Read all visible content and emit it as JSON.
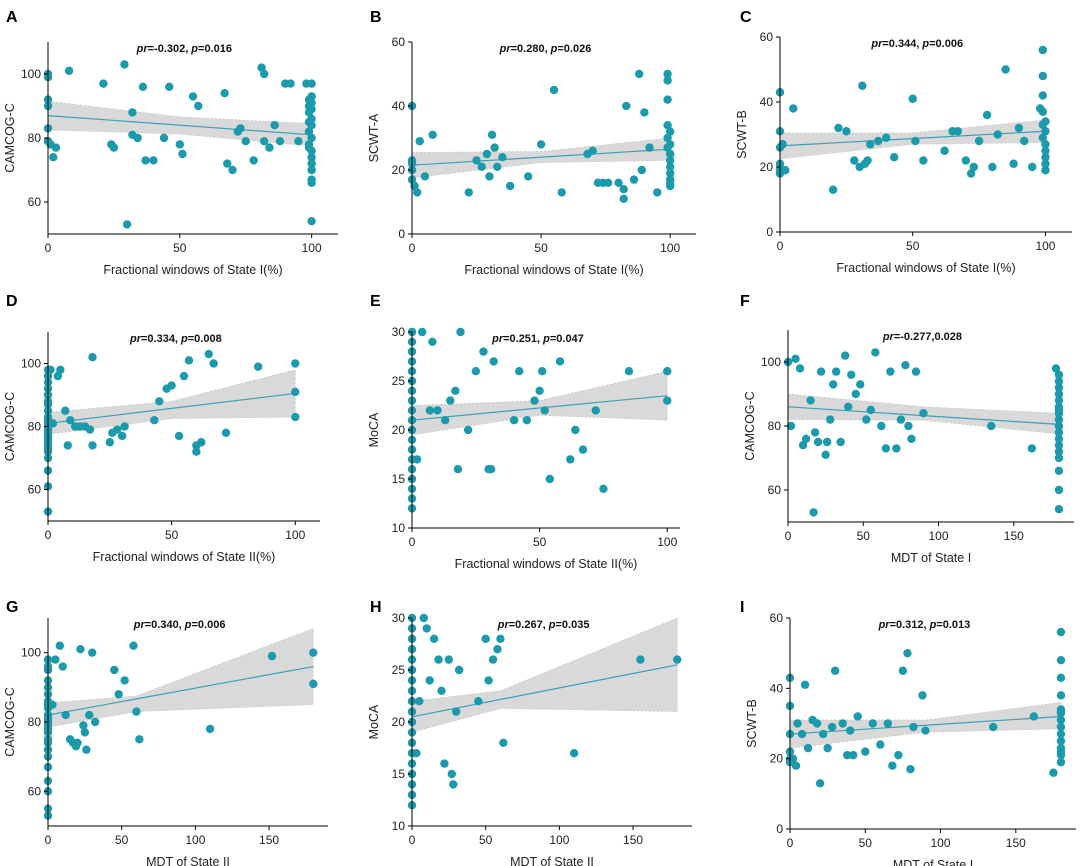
{
  "chart_data": [
    {
      "panel": "A",
      "type": "scatter",
      "xlabel": "Fractional windows of State I(%)",
      "ylabel": "CAMCOG-C",
      "stat_pr": "-0.302",
      "stat_p": "0.016",
      "xlim": [
        0,
        110
      ],
      "ylim": [
        50,
        110
      ],
      "xticks": [
        0,
        50,
        100
      ],
      "yticks": [
        60,
        80,
        100
      ],
      "fit": [
        [
          0,
          87
        ],
        [
          100,
          81
        ]
      ],
      "ci_low": [
        [
          0,
          82.5
        ],
        [
          50,
          81.2
        ],
        [
          100,
          77.5
        ]
      ],
      "ci_high": [
        [
          0,
          91.5
        ],
        [
          50,
          86.6
        ],
        [
          100,
          84.5
        ]
      ],
      "x": [
        0,
        0,
        0,
        0,
        0,
        0,
        1,
        2,
        3,
        8,
        21,
        24,
        25,
        29,
        30,
        32,
        32,
        34,
        36,
        37,
        40,
        44,
        46,
        50,
        51,
        55,
        57,
        67,
        68,
        70,
        72,
        73,
        75,
        78,
        81,
        82,
        82,
        84,
        86,
        88,
        90,
        92,
        95,
        98,
        99,
        99,
        99,
        99,
        99,
        99,
        99,
        100,
        100,
        100,
        100,
        100,
        100,
        100,
        100,
        100,
        100,
        100,
        100,
        100,
        100
      ],
      "y": [
        100,
        99,
        92,
        90,
        83,
        79,
        78,
        74,
        77,
        101,
        97,
        78,
        77,
        103,
        53,
        81,
        88,
        80,
        96,
        73,
        73,
        80,
        96,
        78,
        75,
        93,
        90,
        94,
        72,
        70,
        82,
        83,
        79,
        73,
        102,
        100,
        79,
        77,
        84,
        79,
        97,
        97,
        79,
        97,
        92,
        90,
        88,
        85,
        82,
        78,
        77,
        76,
        74,
        70,
        67,
        54,
        97,
        93,
        91,
        89,
        86,
        84,
        80,
        72,
        66
      ]
    },
    {
      "panel": "B",
      "type": "scatter",
      "xlabel": "Fractional windows of State I(%)",
      "ylabel": "SCWT-A",
      "stat_pr": "0.280",
      "stat_p": "0.026",
      "xlim": [
        0,
        110
      ],
      "ylim": [
        0,
        60
      ],
      "xticks": [
        0,
        50,
        100
      ],
      "yticks": [
        0,
        20,
        40,
        60
      ],
      "fit": [
        [
          0,
          21.5
        ],
        [
          100,
          26.5
        ]
      ],
      "ci_low": [
        [
          0,
          17.5
        ],
        [
          50,
          22.3
        ],
        [
          100,
          23
        ]
      ],
      "ci_high": [
        [
          0,
          25.5
        ],
        [
          50,
          25.8
        ],
        [
          100,
          30
        ]
      ],
      "x": [
        0,
        0,
        0,
        0,
        0,
        1,
        2,
        3,
        5,
        8,
        22,
        25,
        27,
        29,
        30,
        31,
        32,
        33,
        35,
        38,
        45,
        50,
        55,
        58,
        68,
        70,
        72,
        74,
        76,
        80,
        82,
        82,
        83,
        86,
        88,
        89,
        90,
        92,
        95,
        99,
        99,
        99,
        99,
        99,
        99,
        100,
        100,
        100,
        100,
        100,
        100,
        100,
        100,
        100
      ],
      "y": [
        40,
        23,
        22,
        20,
        17,
        15,
        13,
        29,
        18,
        31,
        13,
        23,
        21,
        25,
        18,
        31,
        27,
        21,
        24,
        15,
        18,
        28,
        45,
        13,
        25,
        26,
        16,
        16,
        16,
        16,
        11,
        14,
        40,
        17,
        50,
        20,
        38,
        27,
        13,
        50,
        48,
        42,
        34,
        30,
        27,
        25,
        23,
        21,
        19,
        17,
        16,
        15,
        28,
        32
      ]
    },
    {
      "panel": "C",
      "type": "scatter",
      "xlabel": "Fractional windows of State I(%)",
      "ylabel": "SCWT-B",
      "stat_pr": "0.344",
      "stat_p": "0.006",
      "xlim": [
        0,
        110
      ],
      "ylim": [
        0,
        60
      ],
      "xticks": [
        0,
        50,
        100
      ],
      "yticks": [
        0,
        20,
        40,
        60
      ],
      "fit": [
        [
          0,
          26.5
        ],
        [
          100,
          31
        ]
      ],
      "ci_low": [
        [
          0,
          22.5
        ],
        [
          50,
          27
        ],
        [
          100,
          27.5
        ]
      ],
      "ci_high": [
        [
          0,
          30.5
        ],
        [
          50,
          30.5
        ],
        [
          100,
          34.5
        ]
      ],
      "x": [
        0,
        0,
        0,
        0,
        0,
        0,
        1,
        2,
        5,
        20,
        22,
        25,
        28,
        30,
        31,
        32,
        33,
        34,
        37,
        40,
        43,
        50,
        51,
        54,
        62,
        65,
        67,
        70,
        72,
        73,
        75,
        78,
        80,
        82,
        85,
        88,
        90,
        92,
        95,
        98,
        99,
        99,
        99,
        99,
        99,
        99,
        100,
        100,
        100,
        100,
        100,
        100,
        100
      ],
      "y": [
        43,
        31,
        26,
        21,
        19,
        18,
        27,
        19,
        38,
        13,
        32,
        31,
        22,
        20,
        45,
        21,
        22,
        27,
        28,
        29,
        23,
        41,
        28,
        22,
        25,
        31,
        31,
        22,
        18,
        20,
        28,
        36,
        20,
        30,
        50,
        21,
        32,
        28,
        20,
        38,
        56,
        48,
        42,
        37,
        33,
        29,
        27,
        25,
        23,
        21,
        19,
        31,
        34
      ]
    },
    {
      "panel": "D",
      "type": "scatter",
      "xlabel": "Fractional windows of State II(%)",
      "ylabel": "CAMCOG-C",
      "stat_pr": "0.334",
      "stat_p": "0.008",
      "xlim": [
        0,
        110
      ],
      "ylim": [
        50,
        110
      ],
      "xticks": [
        0,
        50,
        100
      ],
      "yticks": [
        60,
        80,
        100
      ],
      "fit": [
        [
          0,
          81
        ],
        [
          100,
          90.5
        ]
      ],
      "ci_low": [
        [
          0,
          77.5
        ],
        [
          50,
          82.5
        ],
        [
          100,
          83
        ]
      ],
      "ci_high": [
        [
          0,
          84.5
        ],
        [
          50,
          88
        ],
        [
          100,
          98
        ]
      ],
      "x": [
        0,
        0,
        0,
        0,
        0,
        0,
        0,
        0,
        0,
        0,
        0,
        0,
        0,
        0,
        0,
        0,
        0,
        0,
        0,
        0,
        0,
        0,
        0,
        0,
        1,
        2,
        4,
        5,
        7,
        8,
        9,
        11,
        13,
        15,
        17,
        18,
        18,
        25,
        26,
        28,
        30,
        31,
        43,
        45,
        48,
        50,
        53,
        55,
        57,
        60,
        60,
        62,
        65,
        67,
        72,
        85,
        100,
        100,
        100
      ],
      "y": [
        98,
        96,
        94,
        92,
        90,
        88,
        87,
        85,
        83,
        82,
        81,
        80,
        79,
        78,
        77,
        76,
        75,
        74,
        73,
        72,
        70,
        66,
        61,
        53,
        98,
        81,
        96,
        98,
        85,
        74,
        82,
        80,
        80,
        80,
        79,
        74,
        102,
        75,
        78,
        79,
        77,
        80,
        82,
        88,
        92,
        93,
        77,
        96,
        101,
        72,
        74,
        75,
        103,
        100,
        78,
        99,
        100,
        91,
        83
      ]
    },
    {
      "panel": "E",
      "type": "scatter",
      "xlabel": "Fractional windows of State II(%)",
      "ylabel": "MoCA",
      "stat_pr": "0.251",
      "stat_p": "0.047",
      "xlim": [
        0,
        105
      ],
      "ylim": [
        10,
        30
      ],
      "xticks": [
        0,
        50,
        100
      ],
      "yticks": [
        10,
        15,
        20,
        25,
        30
      ],
      "fit": [
        [
          0,
          21
        ],
        [
          100,
          23.5
        ]
      ],
      "ci_low": [
        [
          0,
          19.5
        ],
        [
          50,
          21.5
        ],
        [
          100,
          21
        ]
      ],
      "ci_high": [
        [
          0,
          22.5
        ],
        [
          50,
          23
        ],
        [
          100,
          26
        ]
      ],
      "x": [
        0,
        0,
        0,
        0,
        0,
        0,
        0,
        0,
        0,
        0,
        0,
        0,
        0,
        0,
        0,
        0,
        0,
        0,
        0,
        2,
        4,
        7,
        8,
        10,
        13,
        15,
        17,
        18,
        19,
        22,
        25,
        28,
        30,
        31,
        32,
        40,
        42,
        45,
        48,
        50,
        51,
        52,
        54,
        58,
        62,
        64,
        67,
        72,
        75,
        85,
        100,
        100
      ],
      "y": [
        30,
        29,
        28,
        27,
        26,
        25,
        24,
        23,
        22,
        21,
        20,
        19,
        18,
        17,
        16,
        15,
        14,
        13,
        12,
        17,
        30,
        22,
        29,
        22,
        21,
        23,
        24,
        16,
        30,
        20,
        26,
        28,
        16,
        16,
        27,
        21,
        26,
        21,
        23,
        24,
        26,
        22,
        15,
        27,
        17,
        20,
        18,
        22,
        14,
        26,
        23,
        26
      ]
    },
    {
      "panel": "F",
      "type": "scatter",
      "xlabel": "MDT of State I",
      "ylabel": "CAMCOG-C",
      "stat_pr": "-0.277",
      "stat_p": "",
      "stat_text": "0.028",
      "xlim": [
        0,
        190
      ],
      "ylim": [
        50,
        110
      ],
      "xticks": [
        0,
        50,
        100,
        150
      ],
      "yticks": [
        60,
        80,
        100
      ],
      "fit": [
        [
          0,
          86
        ],
        [
          180,
          80.5
        ]
      ],
      "ci_low": [
        [
          0,
          82
        ],
        [
          90,
          81.8
        ],
        [
          180,
          77.5
        ]
      ],
      "ci_high": [
        [
          0,
          90
        ],
        [
          90,
          86
        ],
        [
          180,
          84
        ]
      ],
      "x": [
        0,
        2,
        5,
        8,
        10,
        12,
        15,
        17,
        18,
        20,
        22,
        25,
        26,
        28,
        30,
        32,
        35,
        38,
        40,
        42,
        45,
        48,
        52,
        55,
        58,
        62,
        65,
        68,
        72,
        75,
        78,
        80,
        82,
        85,
        90,
        135,
        162,
        178,
        180,
        180,
        180,
        180,
        180,
        180,
        180,
        180,
        180,
        180,
        180,
        180,
        180,
        180,
        180,
        180,
        180,
        180
      ],
      "y": [
        100,
        80,
        101,
        98,
        74,
        76,
        88,
        53,
        78,
        75,
        97,
        71,
        75,
        82,
        93,
        97,
        75,
        102,
        86,
        96,
        90,
        93,
        82,
        85,
        103,
        80,
        73,
        97,
        73,
        82,
        99,
        80,
        76,
        97,
        84,
        80,
        73,
        98,
        96,
        94,
        92,
        90,
        88,
        86,
        84,
        82,
        80,
        78,
        76,
        74,
        72,
        70,
        66,
        60,
        54,
        85
      ]
    },
    {
      "panel": "G",
      "type": "scatter",
      "xlabel": "MDT of State II",
      "ylabel": "CAMCOG-C",
      "stat_pr": "0.340",
      "stat_p": "0.006",
      "xlim": [
        0,
        190
      ],
      "ylim": [
        50,
        110
      ],
      "xticks": [
        0,
        50,
        100,
        150
      ],
      "yticks": [
        60,
        80,
        100
      ],
      "fit": [
        [
          0,
          82
        ],
        [
          180,
          96
        ]
      ],
      "ci_low": [
        [
          0,
          78.5
        ],
        [
          60,
          83
        ],
        [
          180,
          85
        ]
      ],
      "ci_high": [
        [
          0,
          85.5
        ],
        [
          60,
          87.5
        ],
        [
          180,
          107
        ]
      ],
      "x": [
        0,
        0,
        0,
        0,
        0,
        0,
        0,
        0,
        0,
        0,
        0,
        0,
        0,
        0,
        0,
        0,
        0,
        0,
        0,
        0,
        0,
        0,
        0,
        0,
        3,
        5,
        8,
        10,
        12,
        15,
        17,
        19,
        20,
        22,
        24,
        25,
        26,
        28,
        30,
        32,
        45,
        48,
        52,
        58,
        60,
        62,
        110,
        152,
        180,
        180
      ],
      "y": [
        98,
        96,
        95,
        92,
        90,
        88,
        86,
        85,
        84,
        82,
        81,
        80,
        79,
        78,
        77,
        75,
        74,
        72,
        70,
        67,
        63,
        60,
        53,
        55,
        85,
        98,
        102,
        96,
        82,
        75,
        74,
        73,
        74,
        101,
        79,
        77,
        72,
        82,
        100,
        80,
        95,
        88,
        92,
        102,
        83,
        75,
        78,
        99,
        100,
        91
      ]
    },
    {
      "panel": "H",
      "type": "scatter",
      "xlabel": "MDT of State II",
      "ylabel": "MoCA",
      "stat_pr": "0.267",
      "stat_p": "0.035",
      "xlim": [
        0,
        190
      ],
      "ylim": [
        10,
        30
      ],
      "xticks": [
        0,
        50,
        100,
        150
      ],
      "yticks": [
        10,
        15,
        20,
        25,
        30
      ],
      "fit": [
        [
          0,
          20.5
        ],
        [
          180,
          25.5
        ]
      ],
      "ci_low": [
        [
          0,
          19
        ],
        [
          60,
          21.3
        ],
        [
          180,
          21
        ]
      ],
      "ci_high": [
        [
          0,
          22
        ],
        [
          60,
          23
        ],
        [
          180,
          30
        ]
      ],
      "x": [
        0,
        0,
        0,
        0,
        0,
        0,
        0,
        0,
        0,
        0,
        0,
        0,
        0,
        0,
        0,
        0,
        0,
        0,
        0,
        3,
        5,
        8,
        10,
        12,
        15,
        18,
        20,
        22,
        25,
        27,
        28,
        30,
        32,
        45,
        50,
        52,
        55,
        58,
        60,
        62,
        110,
        155,
        180
      ],
      "y": [
        30,
        29,
        28,
        27,
        26,
        25,
        24,
        23,
        22,
        21,
        20,
        19,
        18,
        17,
        16,
        15,
        14,
        13,
        12,
        17,
        22,
        30,
        29,
        24,
        28,
        26,
        23,
        16,
        26,
        15,
        14,
        21,
        25,
        22,
        28,
        24,
        26,
        27,
        28,
        18,
        17,
        26,
        26
      ]
    },
    {
      "panel": "I",
      "type": "scatter",
      "xlabel": "MDT of State I",
      "ylabel": "SCWT-B",
      "stat_pr": "0.312",
      "stat_p": "0.013",
      "xlim": [
        0,
        190
      ],
      "ylim": [
        0,
        60
      ],
      "xticks": [
        0,
        50,
        100,
        150
      ],
      "yticks": [
        0,
        20,
        40,
        60
      ],
      "fit": [
        [
          0,
          27
        ],
        [
          180,
          32
        ]
      ],
      "ci_low": [
        [
          0,
          23
        ],
        [
          90,
          27.5
        ],
        [
          180,
          28.5
        ]
      ],
      "ci_high": [
        [
          0,
          31
        ],
        [
          90,
          31
        ],
        [
          180,
          36
        ]
      ],
      "x": [
        0,
        0,
        0,
        0,
        0,
        0,
        2,
        4,
        5,
        8,
        10,
        12,
        15,
        18,
        20,
        22,
        25,
        28,
        30,
        35,
        38,
        40,
        42,
        45,
        50,
        55,
        60,
        65,
        68,
        72,
        75,
        78,
        80,
        82,
        88,
        90,
        135,
        162,
        175,
        180,
        180,
        180,
        180,
        180,
        180,
        180,
        180,
        180,
        180,
        180,
        180,
        180,
        180
      ],
      "y": [
        43,
        35,
        27,
        22,
        20,
        19,
        20,
        18,
        30,
        27,
        41,
        23,
        31,
        30,
        13,
        27,
        23,
        29,
        45,
        30,
        21,
        28,
        21,
        32,
        22,
        30,
        24,
        30,
        18,
        21,
        45,
        50,
        17,
        29,
        38,
        28,
        29,
        32,
        16,
        56,
        48,
        43,
        38,
        34,
        31,
        29,
        27,
        25,
        23,
        21,
        19,
        22,
        33
      ]
    }
  ]
}
